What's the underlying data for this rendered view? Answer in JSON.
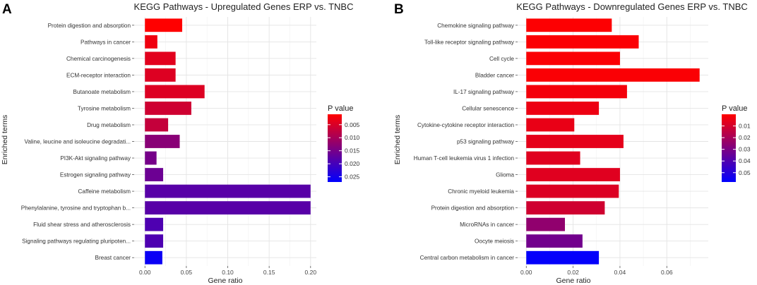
{
  "panels": [
    {
      "letter": "A",
      "chart_data": {
        "type": "bar",
        "orientation": "horizontal",
        "title": "KEGG Pathways - Upregulated Genes ERP vs. TNBC",
        "xlabel": "Gene ratio",
        "ylabel": "Enriched terms",
        "xlim": [
          -0.013,
          0.207
        ],
        "xticks": [
          0.0,
          0.05,
          0.1,
          0.15,
          0.2
        ],
        "xtick_labels": [
          "0.00",
          "0.05",
          "0.10",
          "0.15",
          "0.20"
        ],
        "categories": [
          "Protein digestion and absorption",
          "Pathways in cancer",
          "Chemical carcinogenesis",
          "ECM-receptor interaction",
          "Butanoate metabolism",
          "Tyrosine metabolism",
          "Drug metabolism",
          "Valine, leucine and isoleucine degradati...",
          "PI3K-Akt signaling pathway",
          "Estrogen signaling pathway",
          "Caffeine metabolism",
          "Phenylalanine, tyrosine and tryptophan b...",
          "Fluid shear stress and atherosclerosis",
          "Signaling pathways regulating pluripoten...",
          "Breast cancer"
        ],
        "values": [
          0.045,
          0.015,
          0.037,
          0.037,
          0.072,
          0.056,
          0.028,
          0.042,
          0.014,
          0.022,
          0.2,
          0.2,
          0.022,
          0.022,
          0.021
        ],
        "pvalues": [
          0.001,
          0.0025,
          0.004,
          0.0045,
          0.0045,
          0.006,
          0.007,
          0.013,
          0.015,
          0.016,
          0.018,
          0.018,
          0.019,
          0.019,
          0.026
        ],
        "legend": {
          "title": "P value",
          "range": [
            0.001,
            0.027
          ],
          "ticks": [
            0.005,
            0.01,
            0.015,
            0.02,
            0.025
          ],
          "tick_labels": [
            "0.005",
            "0.010",
            "0.015",
            "0.020",
            "0.025"
          ],
          "low_color": "#ff0000",
          "high_color": "#0000ff"
        }
      }
    },
    {
      "letter": "B",
      "chart_data": {
        "type": "bar",
        "orientation": "horizontal",
        "title": "KEGG Pathways - Downregulated Genes ERP vs. TNBC",
        "xlabel": "Gene ratio",
        "ylabel": "Enriched terms",
        "xlim": [
          -0.0037,
          0.0777
        ],
        "xticks": [
          0.0,
          0.02,
          0.04,
          0.06
        ],
        "xtick_labels": [
          "0.00",
          "0.02",
          "0.04",
          "0.06"
        ],
        "categories": [
          "Chemokine signaling pathway",
          "Toll-like receptor signaling pathway",
          "Cell cycle",
          "Bladder cancer",
          "IL-17 signaling pathway",
          "Cellular senescence",
          "Cytokine-cytokine receptor interaction",
          "p53 signaling pathway",
          "Human T-cell leukemia virus 1 infection",
          "Glioma",
          "Chronic myeloid leukemia",
          "Protein digestion and absorption",
          "MicroRNAs in cancer",
          "Oocyte meiosis",
          "Central carbon metabolism in cancer"
        ],
        "values": [
          0.0365,
          0.048,
          0.04,
          0.074,
          0.043,
          0.031,
          0.0205,
          0.0415,
          0.023,
          0.04,
          0.0395,
          0.0335,
          0.0165,
          0.024,
          0.031
        ],
        "pvalues": [
          0.0005,
          0.0008,
          0.001,
          0.0012,
          0.0025,
          0.004,
          0.005,
          0.006,
          0.007,
          0.007,
          0.008,
          0.011,
          0.025,
          0.032,
          0.057
        ],
        "legend": {
          "title": "P value",
          "range": [
            0.0,
            0.058
          ],
          "ticks": [
            0.01,
            0.02,
            0.03,
            0.04,
            0.05
          ],
          "tick_labels": [
            "0.01",
            "0.02",
            "0.03",
            "0.04",
            "0.05"
          ],
          "low_color": "#ff0000",
          "high_color": "#0000ff"
        }
      }
    }
  ]
}
